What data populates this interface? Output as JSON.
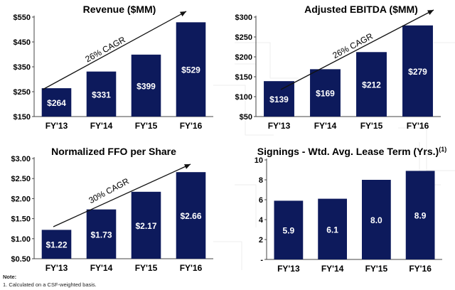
{
  "colors": {
    "bar": "#0d1a5c",
    "bar_label": "#ffffff",
    "arrow": "#111111",
    "axis": "#444444",
    "text": "#000000"
  },
  "chart_data": [
    {
      "type": "bar",
      "title": "Revenue ($MM)",
      "title_sup": "",
      "categories": [
        "FY'13",
        "FY'14",
        "FY'15",
        "FY'16"
      ],
      "values": [
        264,
        331,
        399,
        529
      ],
      "value_labels": [
        "$264",
        "$331",
        "$399",
        "$529"
      ],
      "ylim": [
        150,
        550
      ],
      "yticks": [
        150,
        250,
        350,
        450,
        550
      ],
      "ytick_labels": [
        "$150",
        "$250",
        "$350",
        "$450",
        "$550"
      ],
      "annotation": "26% CAGR",
      "xlabel": "",
      "ylabel": "",
      "grid": false
    },
    {
      "type": "bar",
      "title": "Adjusted EBITDA ($MM)",
      "title_sup": "",
      "categories": [
        "FY'13",
        "FY'14",
        "FY'15",
        "FY'16"
      ],
      "values": [
        139,
        169,
        212,
        279
      ],
      "value_labels": [
        "$139",
        "$169",
        "$212",
        "$279"
      ],
      "ylim": [
        50,
        300
      ],
      "yticks": [
        50,
        100,
        150,
        200,
        250,
        300
      ],
      "ytick_labels": [
        "$50",
        "$100",
        "$150",
        "$200",
        "$250",
        "$300"
      ],
      "annotation": "26% CAGR",
      "xlabel": "",
      "ylabel": "",
      "grid": false
    },
    {
      "type": "bar",
      "title": "Normalized FFO per Share",
      "title_sup": "",
      "categories": [
        "FY'13",
        "FY'14",
        "FY'15",
        "FY'16"
      ],
      "values": [
        1.22,
        1.73,
        2.17,
        2.66
      ],
      "value_labels": [
        "$1.22",
        "$1.73",
        "$2.17",
        "$2.66"
      ],
      "ylim": [
        0.5,
        3.0
      ],
      "yticks": [
        0.5,
        1.0,
        1.5,
        2.0,
        2.5,
        3.0
      ],
      "ytick_labels": [
        "$0.50",
        "$1.00",
        "$1.50",
        "$2.00",
        "$2.50",
        "$3.00"
      ],
      "annotation": "30% CAGR",
      "xlabel": "",
      "ylabel": "",
      "grid": false
    },
    {
      "type": "bar",
      "title": "Signings - Wtd. Avg. Lease Term (Yrs.)",
      "title_sup": "(1)",
      "categories": [
        "FY'13",
        "FY'14",
        "FY'15",
        "FY'16"
      ],
      "values": [
        5.9,
        6.1,
        8.0,
        8.9
      ],
      "value_labels": [
        "5.9",
        "6.1",
        "8.0",
        "8.9"
      ],
      "ylim": [
        0,
        10
      ],
      "yticks": [
        0,
        2,
        4,
        6,
        8,
        10
      ],
      "ytick_labels": [
        "-",
        "2",
        "4",
        "6",
        "8",
        "10"
      ],
      "annotation": "",
      "xlabel": "",
      "ylabel": "",
      "grid": false
    }
  ],
  "footnotes": {
    "heading": "Note:",
    "items": [
      "1. Calculated on a CSF-weighted basis."
    ]
  }
}
